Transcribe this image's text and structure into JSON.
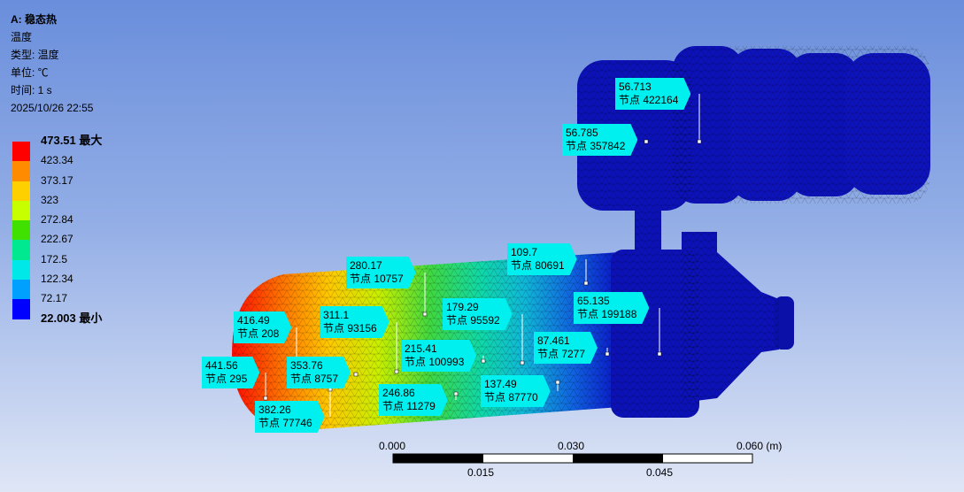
{
  "info": {
    "title": "A: 稳态热",
    "quantity": "温度",
    "type_line": "类型: 温度",
    "unit_line": "单位: ℃",
    "time_line": "时间: 1 s",
    "datetime": "2025/10/26 22:55"
  },
  "legend": {
    "max_label": "473.51 最大",
    "min_label": "22.003 最小",
    "levels": [
      "423.34",
      "373.17",
      "323",
      "272.84",
      "222.67",
      "172.5",
      "122.34",
      "72.17"
    ],
    "colors": [
      "#ff0000",
      "#ff8c00",
      "#ffd000",
      "#c8ff00",
      "#40e000",
      "#00e890",
      "#00e8e8",
      "#00a0ff",
      "#0000ff"
    ]
  },
  "probes": [
    {
      "value": "56.713",
      "node": "节点 422164"
    },
    {
      "value": "56.785",
      "node": "节点 357842"
    },
    {
      "value": "109.7",
      "node": "节点 80691"
    },
    {
      "value": "280.17",
      "node": "节点 10757"
    },
    {
      "value": "65.135",
      "node": "节点 199188"
    },
    {
      "value": "179.29",
      "node": "节点 95592"
    },
    {
      "value": "311.1",
      "node": "节点 93156"
    },
    {
      "value": "416.49",
      "node": "节点 208"
    },
    {
      "value": "87.461",
      "node": "节点 7277"
    },
    {
      "value": "215.41",
      "node": "节点 100993"
    },
    {
      "value": "441.56",
      "node": "节点 295"
    },
    {
      "value": "353.76",
      "node": "节点 8757"
    },
    {
      "value": "137.49",
      "node": "节点 87770"
    },
    {
      "value": "246.86",
      "node": "节点 11279"
    },
    {
      "value": "382.26",
      "node": "节点 77746"
    }
  ],
  "scale_bar": {
    "labels_top": [
      "0.000",
      "0.030",
      "0.060 (m)"
    ],
    "labels_bottom": [
      "0.015",
      "0.045"
    ]
  }
}
